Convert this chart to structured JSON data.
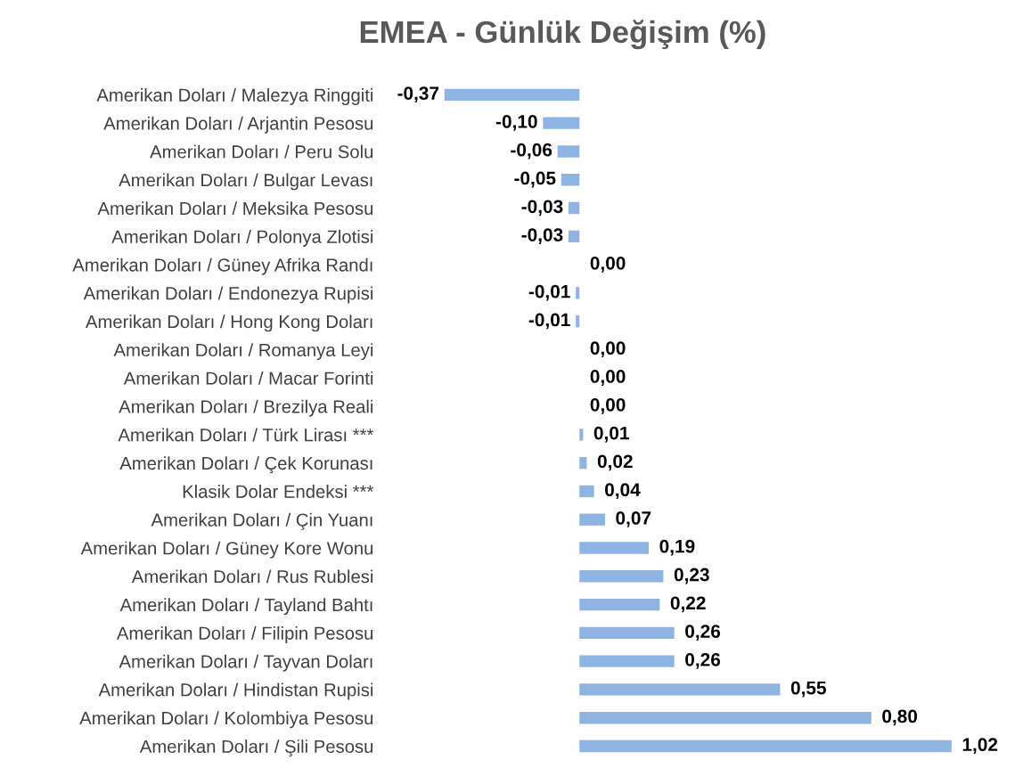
{
  "chart_data": {
    "type": "bar",
    "orientation": "horizontal",
    "title": "EMEA - Günlük Değişim (%)",
    "color": "#8db4e2",
    "categories": [
      "Amerikan Doları / Malezya Ringgiti",
      "Amerikan Doları / Arjantin Pesosu",
      "Amerikan Doları / Peru Solu",
      "Amerikan Doları / Bulgar Levası",
      "Amerikan Doları / Meksika Pesosu",
      "Amerikan Doları / Polonya Zlotisi",
      "Amerikan Doları / Güney Afrika Randı",
      "Amerikan Doları / Endonezya Rupisi",
      "Amerikan Doları / Hong Kong Doları",
      "Amerikan Doları / Romanya Leyi",
      "Amerikan Doları / Macar Forinti",
      "Amerikan Doları / Brezilya Reali",
      "Amerikan Doları / Türk Lirası ***",
      "Amerikan Doları / Çek Korunası",
      "Klasik Dolar Endeksi ***",
      "Amerikan Doları / Çin Yuanı",
      "Amerikan Doları / Güney Kore Wonu",
      "Amerikan Doları / Rus Rublesi",
      "Amerikan Doları / Tayland Bahtı",
      "Amerikan Doları / Filipin Pesosu",
      "Amerikan Doları / Tayvan Doları",
      "Amerikan Doları / Hindistan Rupisi",
      "Amerikan Doları / Kolombiya Pesosu",
      "Amerikan Doları / Şili Pesosu"
    ],
    "values": [
      -0.37,
      -0.1,
      -0.06,
      -0.05,
      -0.03,
      -0.03,
      0.0,
      -0.01,
      -0.01,
      0.0,
      0.0,
      0.0,
      0.01,
      0.02,
      0.04,
      0.07,
      0.19,
      0.23,
      0.22,
      0.26,
      0.26,
      0.55,
      0.8,
      1.02
    ],
    "value_labels": [
      "-0,37",
      "-0,10",
      "-0,06",
      "-0,05",
      "-0,03",
      "-0,03",
      "0,00",
      "-0,01",
      "-0,01",
      "0,00",
      "0,00",
      "0,00",
      "0,01",
      "0,02",
      "0,04",
      "0,07",
      "0,19",
      "0,23",
      "0,22",
      "0,26",
      "0,26",
      "0,55",
      "0,80",
      "1,02"
    ]
  }
}
